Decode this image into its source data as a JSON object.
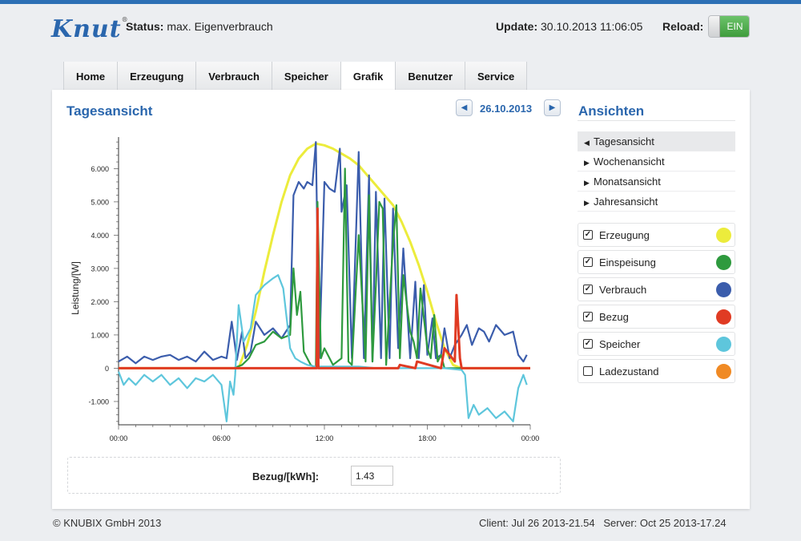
{
  "header": {
    "logo_text": "Knut",
    "logo_mark": "®",
    "status_label": "Status:",
    "status_value": "max. Eigenverbrauch",
    "update_label": "Update:",
    "update_value": "30.10.2013 11:06:05",
    "reload_label": "Reload:",
    "reload_toggle": "EIN"
  },
  "tabs": [
    {
      "label": "Home"
    },
    {
      "label": "Erzeugung"
    },
    {
      "label": "Verbrauch"
    },
    {
      "label": "Speicher"
    },
    {
      "label": "Grafik"
    },
    {
      "label": "Benutzer"
    },
    {
      "label": "Service"
    }
  ],
  "main": {
    "title": "Tagesansicht",
    "date": "26.10.2013",
    "prev_icon": "chevron-left-icon",
    "next_icon": "chevron-right-icon",
    "sum_label": "Bezug/[kWh]:",
    "sum_value": "1.43"
  },
  "sidebar": {
    "title": "Ansichten",
    "views": [
      {
        "label": "Tagesansicht",
        "active": true
      },
      {
        "label": "Wochenansicht",
        "active": false
      },
      {
        "label": "Monatsansicht",
        "active": false
      },
      {
        "label": "Jahresansicht",
        "active": false
      }
    ],
    "layers": [
      {
        "label": "Erzeugung",
        "checked": true,
        "color": "#ecec3c"
      },
      {
        "label": "Einspeisung",
        "checked": true,
        "color": "#2e9a3e"
      },
      {
        "label": "Verbrauch",
        "checked": true,
        "color": "#3b5dac"
      },
      {
        "label": "Bezug",
        "checked": true,
        "color": "#e03b23"
      },
      {
        "label": "Speicher",
        "checked": true,
        "color": "#5ec6dc"
      },
      {
        "label": "Ladezustand",
        "checked": false,
        "color": "#f08a24"
      }
    ]
  },
  "footer": {
    "copyright": "© KNUBIX GmbH 2013",
    "client": "Client: Jul 26 2013-21.54",
    "server": "Server: Oct 25 2013-17.24"
  },
  "chart_data": {
    "type": "line",
    "ylabel": "Leistung/[W]",
    "xlabel": "",
    "x_ticks": [
      "00:00",
      "06:00",
      "12:00",
      "18:00",
      "00:00"
    ],
    "y_ticks": [
      "6.000",
      "5.000",
      "4.000",
      "3.000",
      "2.000",
      "1.000",
      "0",
      "-1.000"
    ],
    "ylim": [
      -1700,
      6900
    ],
    "xlim": [
      0,
      24
    ],
    "series": [
      {
        "name": "Erzeugung",
        "color": "#ecec3c",
        "x": [
          0,
          7,
          7.5,
          8,
          8.5,
          9,
          9.5,
          10,
          10.5,
          11,
          11.5,
          12,
          12.5,
          13,
          13.5,
          14,
          14.5,
          15,
          15.5,
          16,
          16.5,
          17,
          17.5,
          18,
          18.5,
          19,
          19.5,
          20,
          24
        ],
        "y": [
          0,
          0,
          700,
          1700,
          2900,
          4000,
          5000,
          5800,
          6300,
          6600,
          6750,
          6700,
          6600,
          6450,
          6300,
          6100,
          5800,
          5500,
          5200,
          4900,
          4400,
          3800,
          3100,
          2300,
          1400,
          600,
          100,
          0,
          0
        ]
      },
      {
        "name": "Einspeisung",
        "color": "#2e9a3e",
        "x": [
          0,
          6.7,
          7.2,
          7.6,
          8,
          8.5,
          9,
          9.5,
          10,
          10.2,
          10.4,
          10.6,
          10.8,
          11,
          11.2,
          11.5,
          11.6,
          11.8,
          12,
          12.5,
          13,
          13.2,
          13.4,
          13.6,
          14,
          14.4,
          14.6,
          14.8,
          15,
          15.2,
          15.4,
          15.6,
          16,
          16.2,
          16.4,
          16.6,
          17,
          17.2,
          17.4,
          17.6,
          18,
          18.2,
          18.4,
          18.6,
          18.8,
          19,
          24
        ],
        "y": [
          0,
          0,
          100,
          300,
          700,
          800,
          1100,
          900,
          1000,
          3000,
          1600,
          2300,
          500,
          300,
          100,
          0,
          5000,
          300,
          600,
          100,
          300,
          6000,
          200,
          100,
          4000,
          200,
          5200,
          200,
          2500,
          5000,
          4800,
          100,
          3800,
          4900,
          300,
          2800,
          1100,
          800,
          300,
          2400,
          600,
          300,
          1600,
          200,
          400,
          0,
          0
        ]
      },
      {
        "name": "Verbrauch",
        "color": "#3b5dac",
        "x": [
          0,
          0.5,
          1,
          1.5,
          2,
          2.5,
          3,
          3.5,
          4,
          4.5,
          5,
          5.5,
          6,
          6.3,
          6.6,
          6.9,
          7.2,
          7.4,
          7.7,
          8,
          8.5,
          9,
          9.5,
          10,
          10.2,
          10.5,
          10.8,
          11,
          11.3,
          11.5,
          11.7,
          12,
          12.3,
          12.6,
          12.9,
          13,
          13.3,
          13.6,
          14,
          14.3,
          14.6,
          14.8,
          15,
          15.3,
          15.5,
          15.8,
          16,
          16.3,
          16.6,
          17,
          17.3,
          17.5,
          17.8,
          18,
          18.3,
          18.5,
          18.8,
          19,
          19.3,
          19.6,
          20,
          20.3,
          20.6,
          21,
          21.3,
          21.6,
          22,
          22.5,
          23,
          23.3,
          23.6,
          23.8
        ],
        "y": [
          200,
          350,
          150,
          350,
          250,
          350,
          400,
          250,
          350,
          200,
          500,
          250,
          350,
          300,
          1400,
          250,
          1100,
          300,
          500,
          1400,
          1000,
          1200,
          900,
          1300,
          5200,
          5600,
          5400,
          5600,
          5500,
          6800,
          300,
          5600,
          5400,
          5300,
          6600,
          4700,
          5500,
          300,
          6500,
          300,
          5800,
          200,
          5300,
          300,
          5100,
          300,
          4800,
          600,
          3600,
          300,
          2600,
          300,
          2500,
          400,
          1500,
          300,
          400,
          1200,
          300,
          700,
          1000,
          1300,
          700,
          1200,
          1100,
          800,
          1300,
          1000,
          1100,
          400,
          200,
          400
        ]
      },
      {
        "name": "Bezug",
        "color": "#e03b23",
        "x": [
          0,
          11.5,
          11.55,
          11.6,
          11.65,
          11.7,
          12,
          13,
          13.2,
          16.3,
          16.4,
          17.3,
          17.4,
          18.8,
          19,
          19.6,
          19.7,
          19.9,
          20,
          24
        ],
        "y": [
          0,
          0,
          0,
          4800,
          0,
          0,
          0,
          0,
          0,
          0,
          100,
          0,
          200,
          0,
          600,
          200,
          2200,
          300,
          0,
          0
        ]
      },
      {
        "name": "Speicher",
        "color": "#5ec6dc",
        "x": [
          0,
          0.3,
          0.6,
          1,
          1.5,
          2,
          2.5,
          3,
          3.5,
          4,
          4.5,
          5,
          5.5,
          6,
          6.3,
          6.5,
          6.7,
          6.8,
          7,
          7.3,
          7.7,
          8,
          8.5,
          9,
          9.3,
          9.6,
          10,
          10.3,
          10.6,
          11,
          11.5,
          12,
          13,
          14,
          15,
          16,
          17,
          18,
          19,
          20,
          20.2,
          20.4,
          20.7,
          21,
          21.5,
          22,
          22.5,
          23,
          23.3,
          23.6,
          23.8
        ],
        "y": [
          -100,
          -500,
          -300,
          -500,
          -200,
          -400,
          -200,
          -500,
          -300,
          -600,
          -300,
          -400,
          -200,
          -500,
          -1600,
          -400,
          -800,
          -200,
          1900,
          800,
          1200,
          2200,
          2500,
          2700,
          2800,
          2400,
          600,
          300,
          200,
          100,
          50,
          50,
          50,
          50,
          0,
          0,
          0,
          0,
          0,
          -50,
          -200,
          -1500,
          -1100,
          -1400,
          -1200,
          -1500,
          -1300,
          -1600,
          -600,
          -200,
          -500
        ]
      }
    ]
  }
}
